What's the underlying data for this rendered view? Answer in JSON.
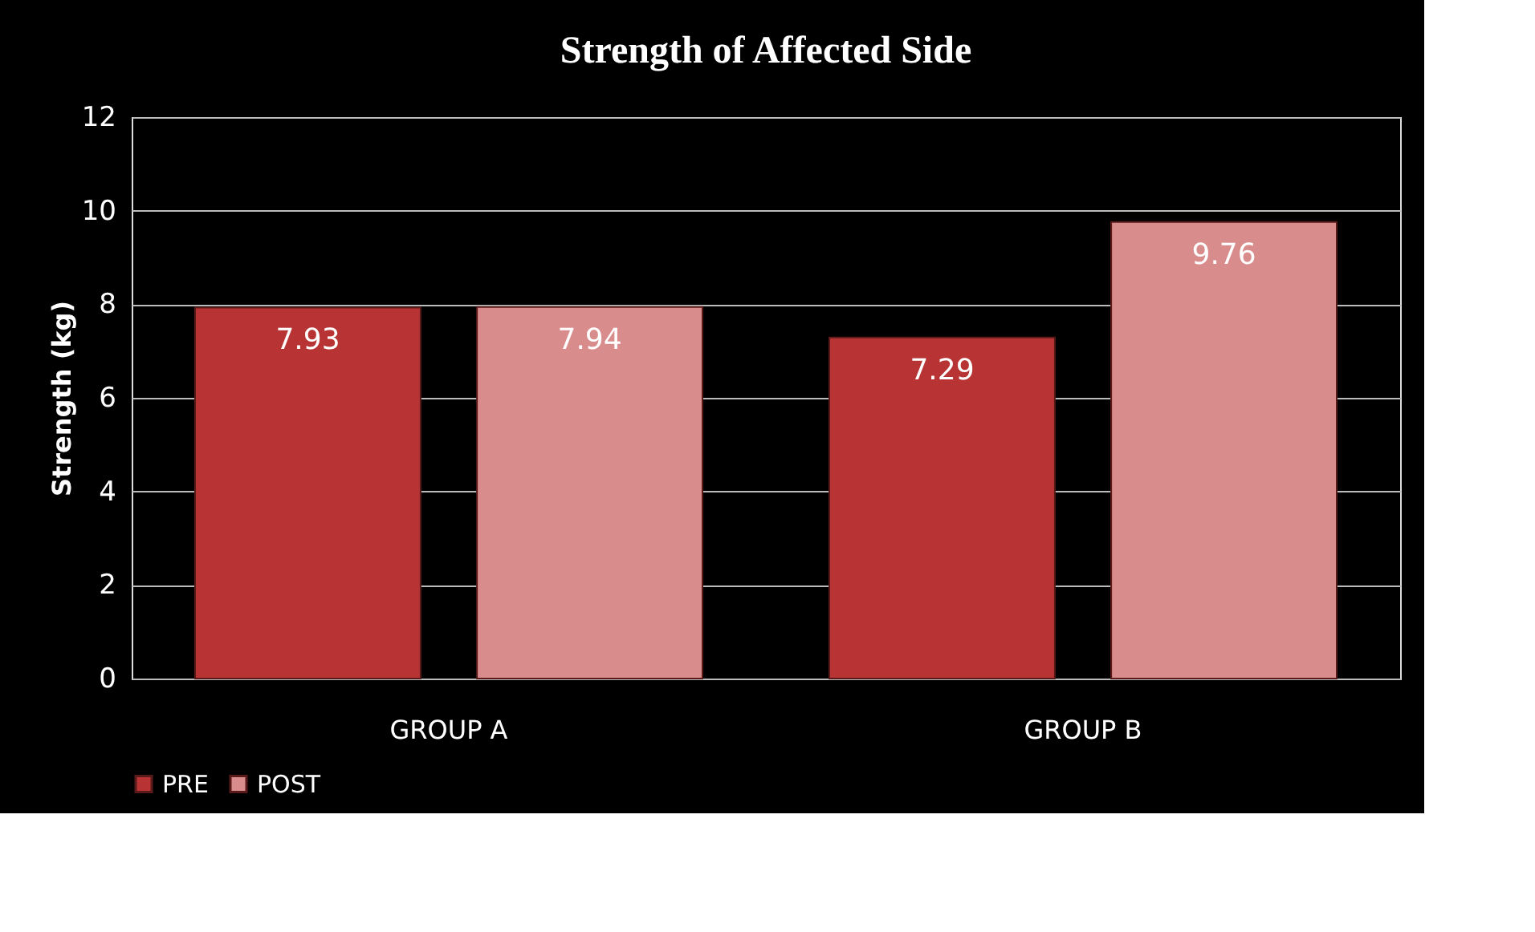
{
  "chart_data": {
    "type": "bar",
    "title": "Strength of Affected Side",
    "ylabel": "Strength  (kg)",
    "categories": [
      "GROUP A",
      "GROUP B"
    ],
    "series": [
      {
        "name": "PRE",
        "color": "#b83434",
        "values": [
          7.93,
          7.29
        ]
      },
      {
        "name": "POST",
        "color": "#d98c8c",
        "values": [
          7.94,
          9.76
        ]
      }
    ],
    "ylim": [
      0,
      12
    ],
    "yticks": [
      0,
      2,
      4,
      6,
      8,
      10,
      12
    ],
    "grid": "y",
    "legend": "bottom",
    "data_labels": true
  }
}
